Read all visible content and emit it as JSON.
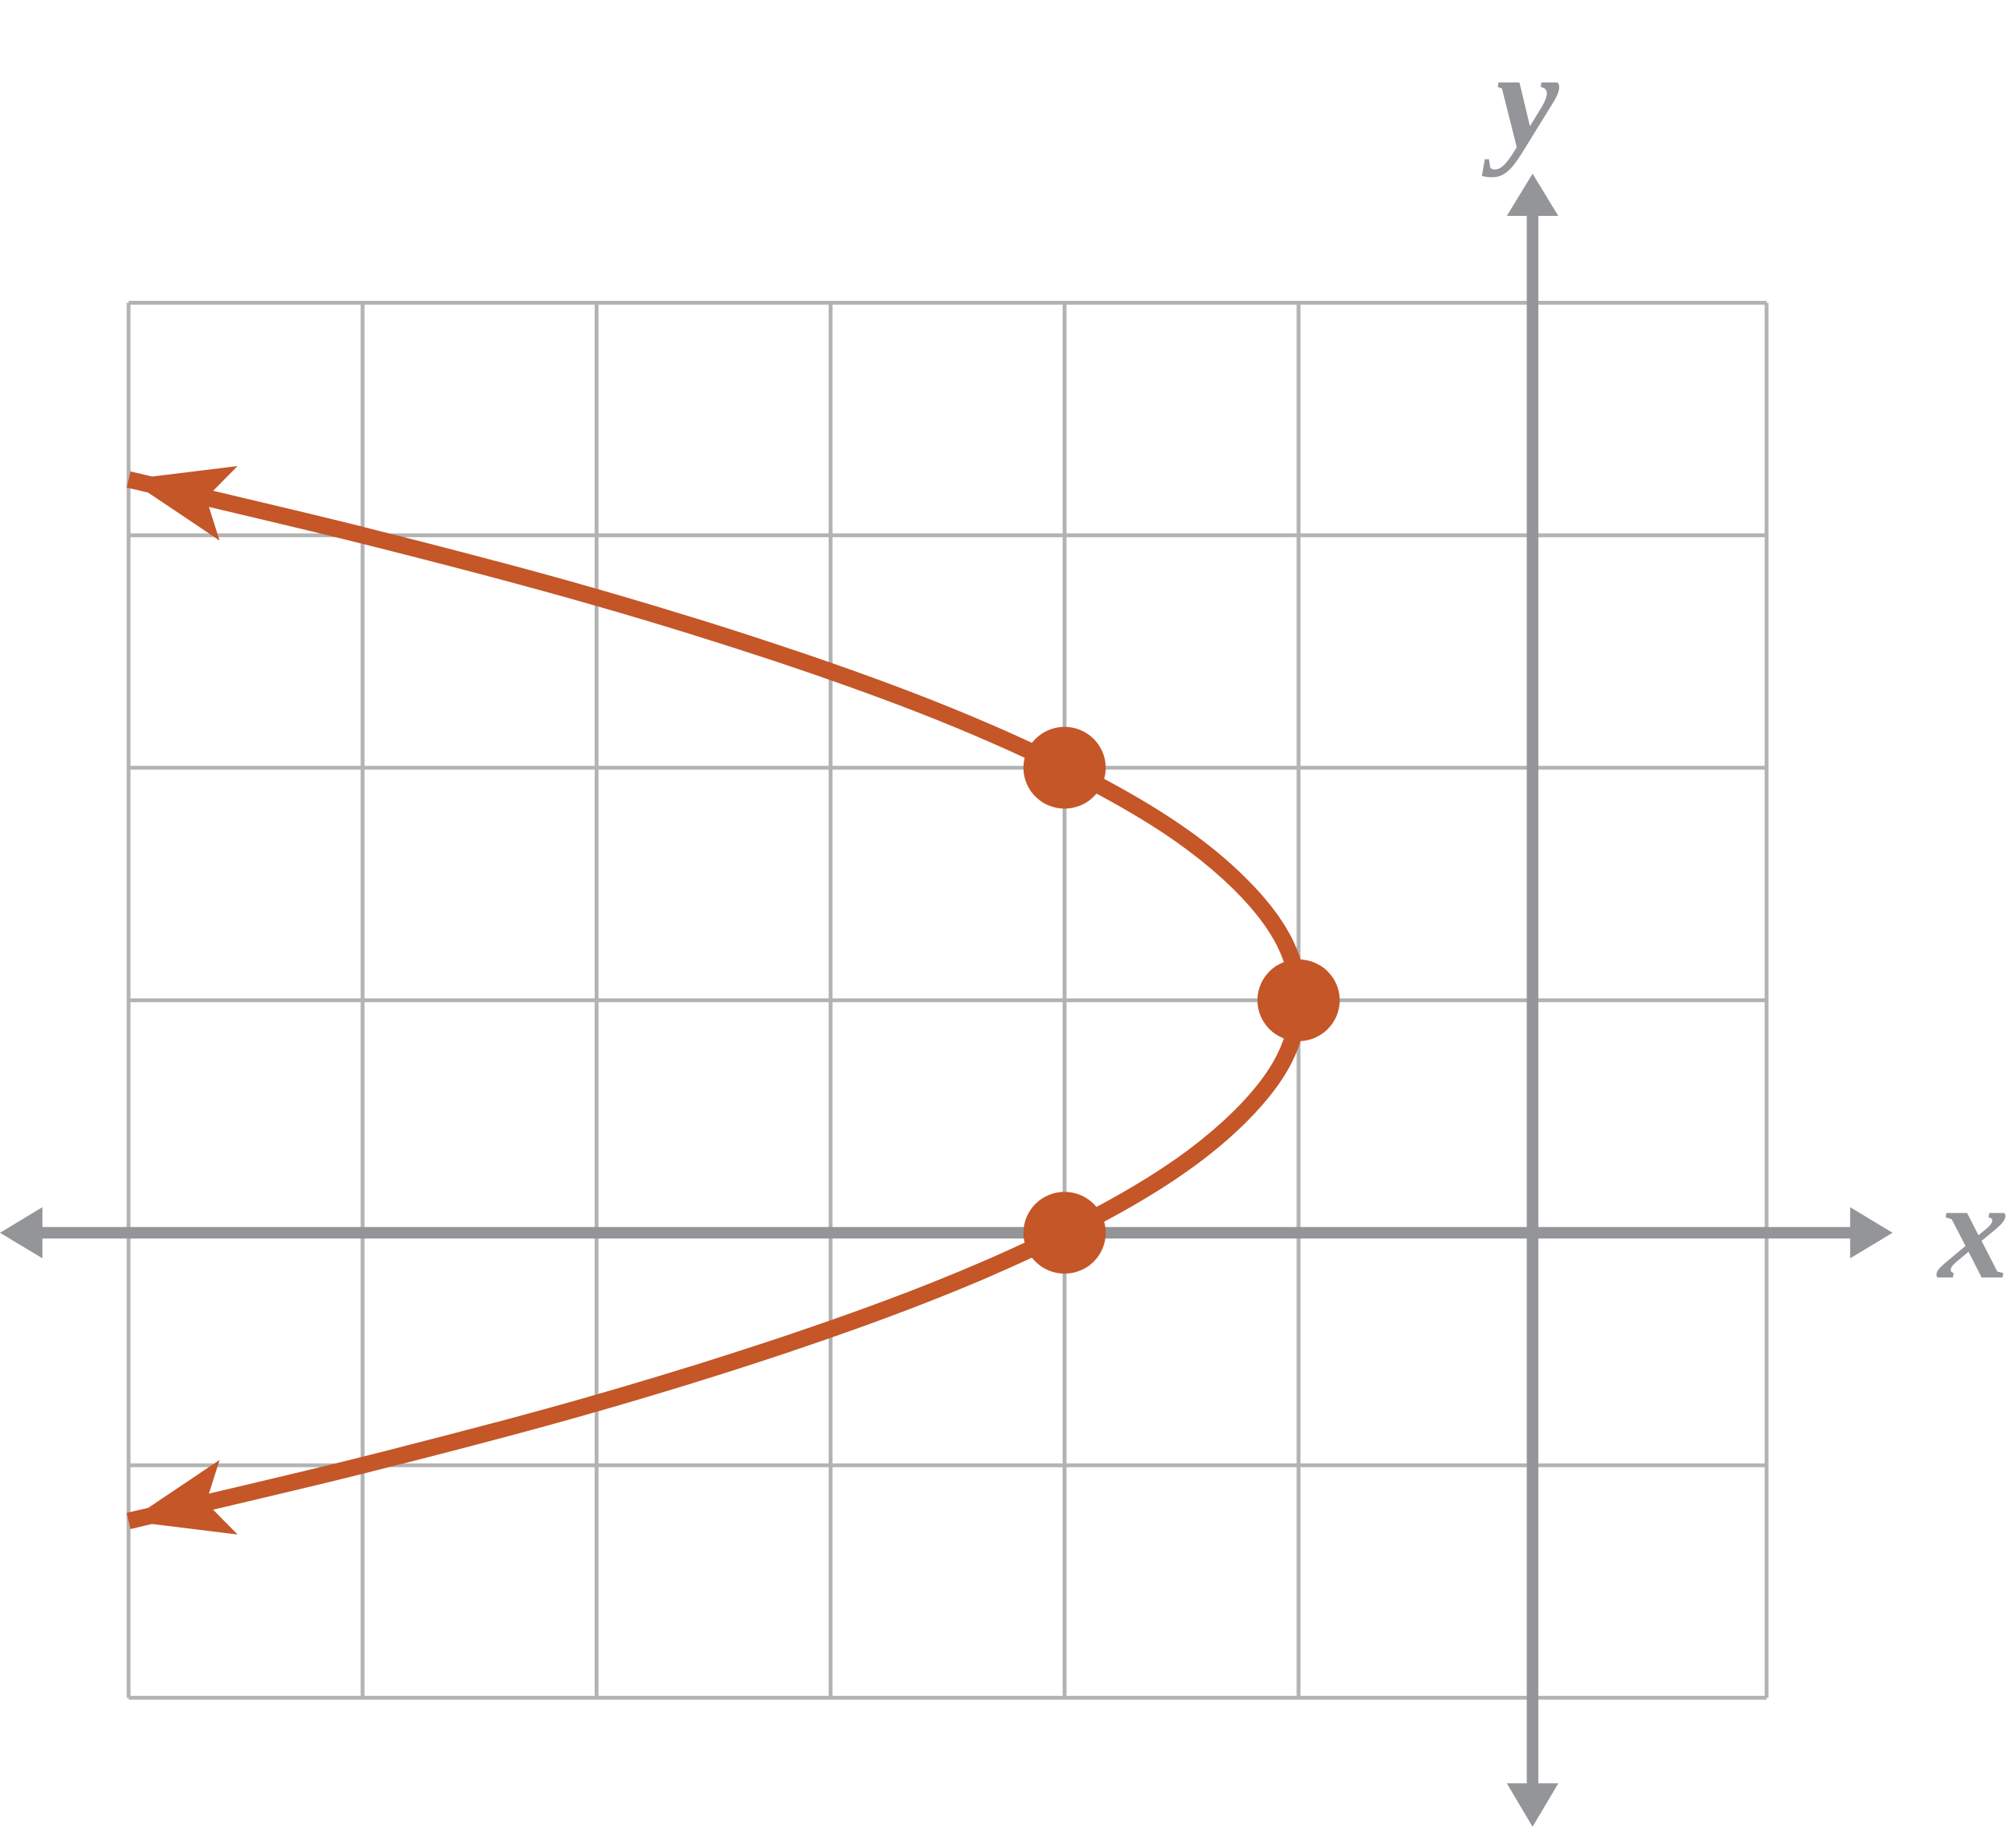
{
  "chart_data": {
    "type": "line",
    "xlabel": "x",
    "ylabel": "y",
    "xlim": [
      -6,
      1
    ],
    "ylim": [
      -2,
      4
    ],
    "xticks": [
      -6,
      -5,
      -4,
      -3,
      -2,
      -1,
      0,
      1
    ],
    "yticks": [
      -2,
      -1,
      0,
      1,
      2,
      3,
      4
    ],
    "grid": true,
    "color": "#c45628",
    "series": [
      {
        "x": [
          -6,
          -5,
          -4.06,
          -3.25,
          -2.56,
          -2,
          -1.56,
          -1.25,
          -1.06,
          -1,
          -1.06,
          -1.25,
          -1.56,
          -2,
          -2.56,
          -3.25,
          -4.06,
          -5,
          -6
        ],
        "y": [
          3.24,
          3,
          2.75,
          2.5,
          2.25,
          2,
          1.75,
          1.5,
          1.25,
          1,
          0.75,
          0.5,
          0.25,
          0,
          -0.25,
          -0.5,
          -0.75,
          -1,
          -1.24
        ]
      }
    ],
    "points": {
      "x": [
        -2,
        -1,
        -2
      ],
      "y": [
        2,
        1,
        0
      ]
    }
  }
}
